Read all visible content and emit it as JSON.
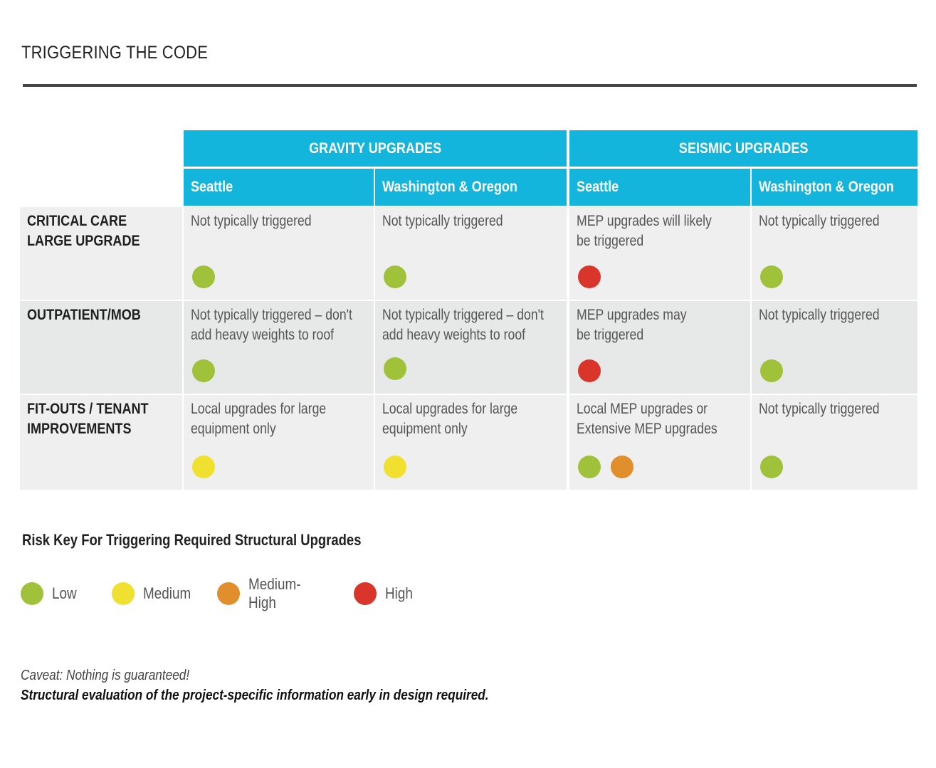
{
  "title": "TRIGGERING THE CODE",
  "colors": {
    "header": "#14b5dc",
    "low": "#9fc23a",
    "medium": "#f0e030",
    "medium_high": "#e08f2c",
    "high": "#d9352a"
  },
  "table": {
    "groups": [
      "GRAVITY UPGRADES",
      "SEISMIC UPGRADES"
    ],
    "columns": [
      "Seattle",
      "Washington & Oregon",
      "Seattle",
      "Washington & Oregon"
    ],
    "rows": [
      {
        "label": "CRITICAL CARE\nLARGE UPGRADE",
        "cells": [
          {
            "text": "Not typically triggered",
            "risk": [
              "low"
            ]
          },
          {
            "text": "Not typically triggered",
            "risk": [
              "low"
            ]
          },
          {
            "text": "MEP upgrades will likely\nbe triggered",
            "risk": [
              "high"
            ]
          },
          {
            "text": "Not typically triggered",
            "risk": [
              "low"
            ]
          }
        ]
      },
      {
        "label": "OUTPATIENT/MOB",
        "cells": [
          {
            "text": "Not typically triggered – don't\nadd heavy weights to roof",
            "risk": [
              "low"
            ]
          },
          {
            "text": "Not typically triggered – don't\nadd heavy weights to roof",
            "risk": [
              "low"
            ]
          },
          {
            "text": "MEP upgrades may\nbe triggered",
            "risk": [
              "high"
            ]
          },
          {
            "text": "Not typically triggered",
            "risk": [
              "low"
            ]
          }
        ]
      },
      {
        "label": "FIT-OUTS / TENANT\nIMPROVEMENTS",
        "cells": [
          {
            "text": "Local upgrades for large\nequipment only",
            "risk": [
              "medium"
            ]
          },
          {
            "text": "Local upgrades for large\nequipment only",
            "risk": [
              "medium"
            ]
          },
          {
            "text": "Local MEP upgrades or\nExtensive MEP upgrades",
            "risk": [
              "low",
              "medium_high"
            ]
          },
          {
            "text": "Not typically triggered",
            "risk": [
              "low"
            ]
          }
        ]
      }
    ]
  },
  "legend": {
    "title": "Risk Key For Triggering Required Structural Upgrades",
    "items": [
      {
        "key": "low",
        "label": "Low"
      },
      {
        "key": "medium",
        "label": "Medium"
      },
      {
        "key": "medium_high",
        "label": "Medium-High"
      },
      {
        "key": "high",
        "label": "High"
      }
    ]
  },
  "caveat": "Caveat: Nothing is guaranteed!",
  "note": "Structural evaluation of the project-specific information early in design required."
}
